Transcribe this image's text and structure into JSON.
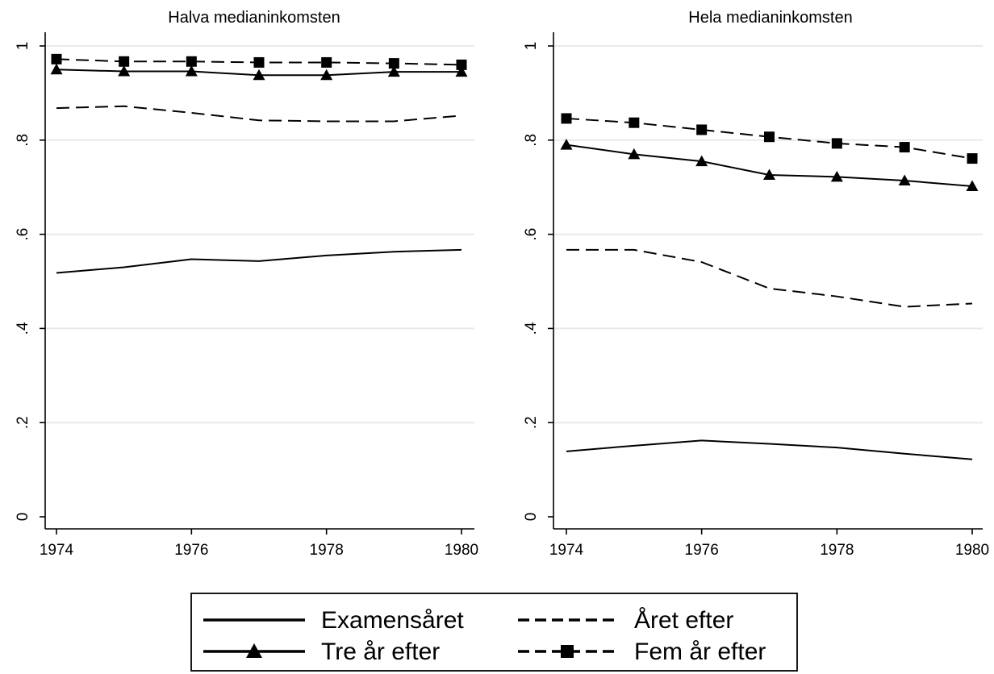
{
  "chart_data": [
    {
      "type": "line",
      "title": "Halva medianinkomsten",
      "xlabel": "",
      "ylabel": "",
      "x": [
        1974,
        1975,
        1976,
        1977,
        1978,
        1979,
        1980
      ],
      "xticks": [
        1974,
        1976,
        1978,
        1980
      ],
      "xtick_labels": [
        "1974",
        "1976",
        "1978",
        "1980"
      ],
      "xlim": [
        1974,
        1980
      ],
      "yticks": [
        0,
        0.2,
        0.4,
        0.6,
        0.8,
        1
      ],
      "ytick_labels": [
        "0",
        ".2",
        ".4",
        ".6",
        ".8",
        "1"
      ],
      "ylim": [
        0,
        1
      ],
      "grid": true,
      "series": [
        {
          "name": "Examensåret",
          "values": [
            0.518,
            0.53,
            0.547,
            0.543,
            0.555,
            0.563,
            0.567
          ]
        },
        {
          "name": "Året efter",
          "values": [
            0.868,
            0.872,
            0.858,
            0.842,
            0.84,
            0.84,
            0.852
          ]
        },
        {
          "name": "Tre år efter",
          "values": [
            0.95,
            0.946,
            0.946,
            0.938,
            0.938,
            0.945,
            0.945
          ]
        },
        {
          "name": "Fem år efter",
          "values": [
            0.972,
            0.967,
            0.967,
            0.965,
            0.965,
            0.963,
            0.96
          ]
        }
      ]
    },
    {
      "type": "line",
      "title": "Hela medianinkomsten",
      "xlabel": "",
      "ylabel": "",
      "x": [
        1974,
        1975,
        1976,
        1977,
        1978,
        1979,
        1980
      ],
      "xticks": [
        1974,
        1976,
        1978,
        1980
      ],
      "xtick_labels": [
        "1974",
        "1976",
        "1978",
        "1980"
      ],
      "xlim": [
        1974,
        1980
      ],
      "yticks": [
        0,
        0.2,
        0.4,
        0.6,
        0.8,
        1
      ],
      "ytick_labels": [
        "0",
        ".2",
        ".4",
        ".6",
        ".8",
        "1"
      ],
      "ylim": [
        0,
        1
      ],
      "grid": true,
      "series": [
        {
          "name": "Examensåret",
          "values": [
            0.139,
            0.151,
            0.162,
            0.155,
            0.147,
            0.134,
            0.122
          ]
        },
        {
          "name": "Året efter",
          "values": [
            0.567,
            0.567,
            0.541,
            0.485,
            0.468,
            0.446,
            0.453
          ]
        },
        {
          "name": "Tre år efter",
          "values": [
            0.79,
            0.77,
            0.755,
            0.726,
            0.722,
            0.714,
            0.702
          ]
        },
        {
          "name": "Fem år efter",
          "values": [
            0.846,
            0.837,
            0.822,
            0.807,
            0.793,
            0.785,
            0.761
          ]
        }
      ]
    }
  ],
  "legend": {
    "placement": "bottom",
    "items": [
      {
        "label": "Examensåret",
        "style": "solid",
        "marker": "none"
      },
      {
        "label": "Året efter",
        "style": "dashed",
        "marker": "none"
      },
      {
        "label": "Tre år efter",
        "style": "solid",
        "marker": "triangle"
      },
      {
        "label": "Fem år efter",
        "style": "dashed",
        "marker": "square"
      }
    ]
  },
  "colors": {
    "line": "#000000",
    "grid": "#e3ecea",
    "background": "#ffffff"
  }
}
